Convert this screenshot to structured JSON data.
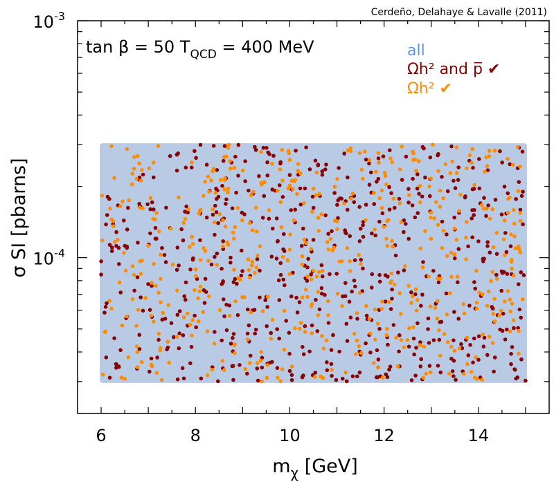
{
  "chart_data": {
    "type": "scatter",
    "credit": "Cerdeño, Delahaye & Lavalle (2011)",
    "annotation": {
      "prefix": "tan β = 50  T",
      "sub": "QCD",
      "suffix": " = 400 MeV"
    },
    "xlabel": {
      "main": "m",
      "sub": "χ",
      "rest": " [GeV]"
    },
    "ylabel": "σ SI [pbarns]",
    "xlim": [
      5.5,
      15.5
    ],
    "ylim": [
      2.2e-05,
      0.001
    ],
    "yscale": "log",
    "x_ticks": [
      {
        "value": 6,
        "label": "6"
      },
      {
        "value": 8,
        "label": "8"
      },
      {
        "value": 10,
        "label": "10"
      },
      {
        "value": 12,
        "label": "12"
      },
      {
        "value": 14,
        "label": "14"
      }
    ],
    "y_ticks": [
      {
        "value": 0.0001,
        "base": "10",
        "exp": "-4"
      },
      {
        "value": 0.001,
        "base": "10",
        "exp": "-3"
      }
    ],
    "series": [
      {
        "name": "all",
        "label": "all",
        "color": "#b9cbe4",
        "region": {
          "x": [
            6,
            15
          ],
          "y": [
            3e-05,
            0.0003
          ]
        }
      },
      {
        "name": "omega-and-pbar",
        "label": "Ωh² and p̅ ✔",
        "color": "#8b0000",
        "count": 620,
        "seed": 12345,
        "region": {
          "x": [
            6,
            15
          ],
          "y": [
            3e-05,
            0.0003
          ]
        }
      },
      {
        "name": "omega",
        "label": "Ωh² ✔",
        "color": "#ff8c00",
        "count": 520,
        "seed": 98765,
        "region": {
          "x": [
            6,
            15
          ],
          "y": [
            3e-05,
            0.0003
          ]
        }
      }
    ]
  }
}
